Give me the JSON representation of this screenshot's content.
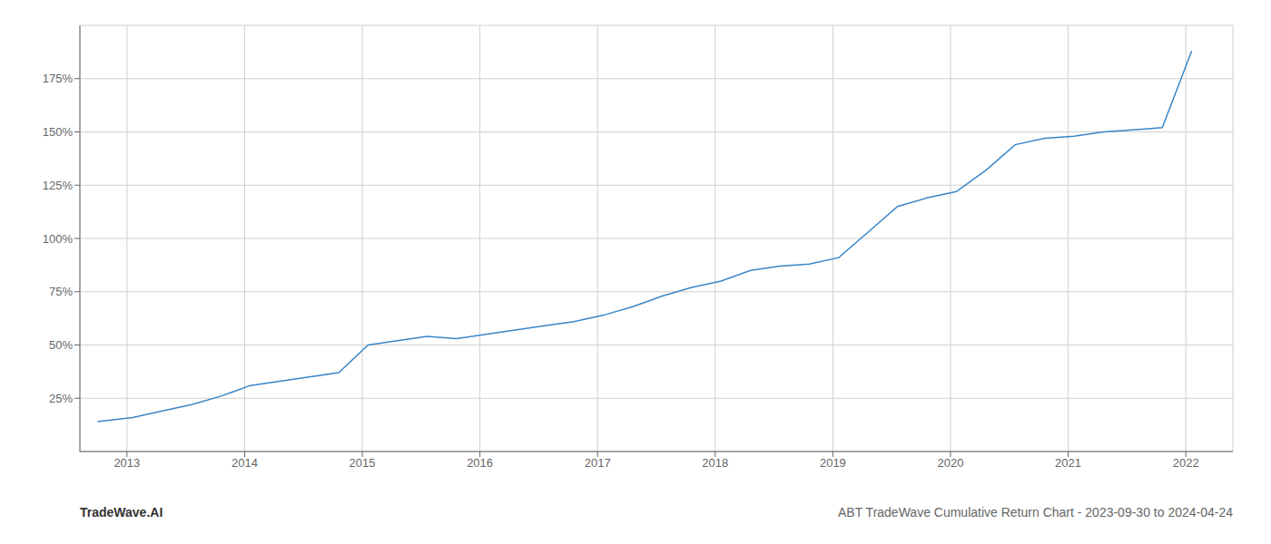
{
  "chart_data": {
    "type": "line",
    "title": "ABT TradeWave Cumulative Return Chart - 2023-09-30 to 2024-04-24",
    "annotations": [
      "TradeWave.AI"
    ],
    "color": "#3a86c8",
    "grid": true,
    "x": [
      2012.75,
      2013.05,
      2013.3,
      2013.55,
      2013.8,
      2014.05,
      2014.3,
      2014.55,
      2014.8,
      2015.05,
      2015.3,
      2015.55,
      2015.8,
      2016.05,
      2016.3,
      2016.55,
      2016.8,
      2017.05,
      2017.3,
      2017.55,
      2017.8,
      2018.05,
      2018.3,
      2018.55,
      2018.8,
      2019.05,
      2019.3,
      2019.55,
      2019.8,
      2020.05,
      2020.3,
      2020.55,
      2020.8,
      2021.05,
      2021.3,
      2021.55,
      2021.8,
      2022.05
    ],
    "values": [
      14,
      16,
      19,
      22,
      26,
      31,
      33,
      35,
      37,
      50,
      52,
      54,
      53,
      55,
      57,
      59,
      61,
      64,
      68,
      73,
      77,
      80,
      85,
      87,
      88,
      91,
      103,
      115,
      119,
      122,
      132,
      144,
      147,
      148,
      150,
      151,
      152,
      188
    ],
    "xlim": [
      2012.6,
      2022.4
    ],
    "xticks": [
      2013,
      2014,
      2015,
      2016,
      2017,
      2018,
      2019,
      2020,
      2021,
      2022
    ],
    "ylim": [
      0,
      200
    ],
    "yticks": [
      {
        "value": 25,
        "label": "25%"
      },
      {
        "value": 50,
        "label": "50%"
      },
      {
        "value": 75,
        "label": "75%"
      },
      {
        "value": 100,
        "label": "100%"
      },
      {
        "value": 125,
        "label": "125%"
      },
      {
        "value": 150,
        "label": "150%"
      },
      {
        "value": 175,
        "label": "175%"
      }
    ]
  }
}
